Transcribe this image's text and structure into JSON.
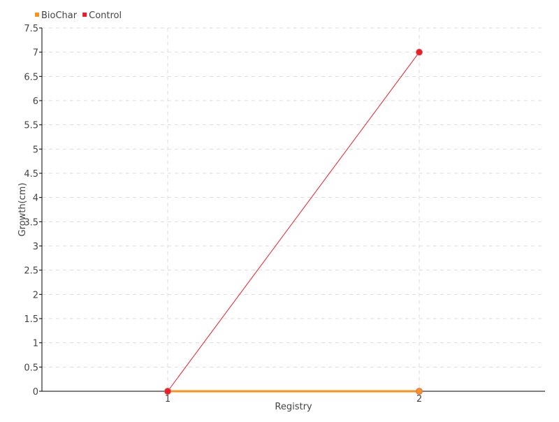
{
  "chart_data": {
    "type": "line",
    "title": "",
    "xlabel": "Registry",
    "ylabel": "Growth(cm)",
    "x": [
      1,
      2
    ],
    "xlim": [
      0.5,
      2.5
    ],
    "ylim": [
      0,
      7.5
    ],
    "yticks": [
      0,
      0.5,
      1,
      1.5,
      2,
      2.5,
      3,
      3.5,
      4,
      4.5,
      5,
      5.5,
      6,
      6.5,
      7,
      7.5
    ],
    "xticks": [
      1,
      2
    ],
    "grid": true,
    "legend_position": "top-left",
    "series": [
      {
        "name": "BioChar",
        "values": [
          0,
          0
        ],
        "color": "#f7931e"
      },
      {
        "name": "Control",
        "values": [
          0,
          7
        ],
        "color": "#ee1c25"
      }
    ]
  }
}
